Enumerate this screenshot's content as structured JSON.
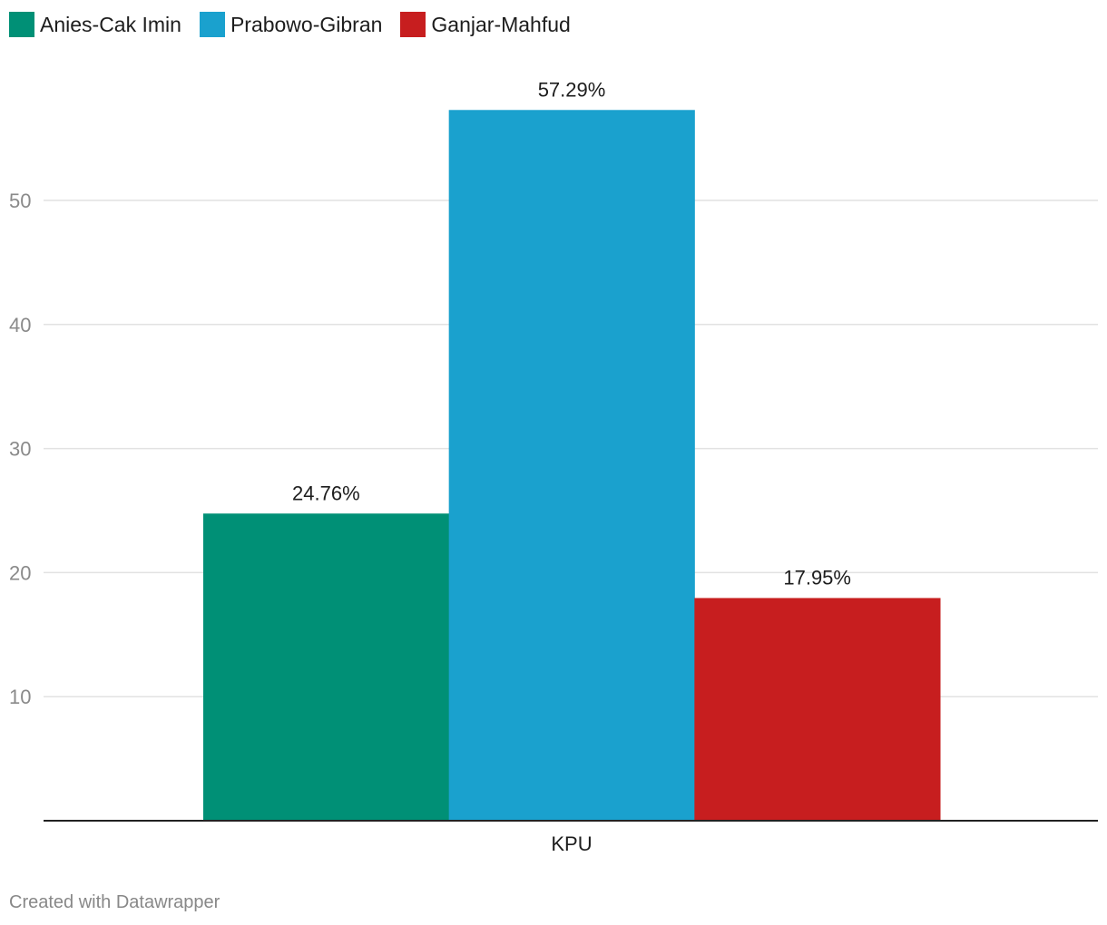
{
  "chart_data": {
    "type": "bar",
    "categories": [
      "KPU"
    ],
    "series": [
      {
        "name": "Anies-Cak Imin",
        "values": [
          24.76
        ],
        "label": "24.76%",
        "color": "#009076"
      },
      {
        "name": "Prabowo-Gibran",
        "values": [
          57.29
        ],
        "label": "57.29%",
        "color": "#1aa1ce"
      },
      {
        "name": "Ganjar-Mahfud",
        "values": [
          17.95
        ],
        "label": "17.95%",
        "color": "#c71e1f"
      }
    ],
    "yticks": [
      10,
      20,
      30,
      40,
      50
    ],
    "ylim": [
      0,
      60
    ],
    "grid": true,
    "legend": "top-left",
    "title": "",
    "xlabel": "",
    "ylabel": ""
  },
  "footer": "Created with Datawrapper"
}
